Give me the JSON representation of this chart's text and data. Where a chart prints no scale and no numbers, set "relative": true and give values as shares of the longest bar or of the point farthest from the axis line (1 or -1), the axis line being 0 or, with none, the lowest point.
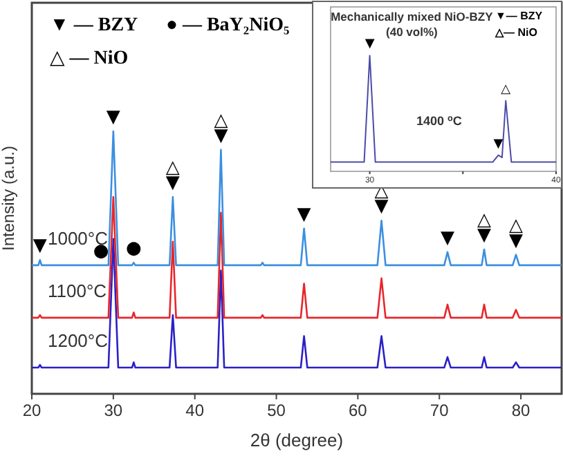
{
  "chart_data": [
    {
      "type": "line",
      "relative": true,
      "xlabel": "2θ (degree)",
      "ylabel": "Intensity (a.u.)",
      "xlim": [
        20,
        85
      ],
      "xticks": [
        20,
        30,
        40,
        50,
        60,
        70,
        80
      ],
      "x": [
        20,
        20.8,
        21,
        21.2,
        29.4,
        30,
        30.6,
        32.3,
        32.5,
        32.7,
        36.9,
        37.3,
        37.7,
        42.8,
        43.2,
        43.6,
        48.1,
        48.3,
        48.5,
        53.0,
        53.4,
        53.8,
        62.4,
        62.9,
        63.4,
        70.6,
        71,
        71.4,
        75.2,
        75.5,
        75.8,
        79.0,
        79.4,
        79.8,
        85
      ],
      "series": [
        {
          "name": "1000°C",
          "color": "#3b8fe0",
          "values": [
            0.49,
            0.49,
            0.51,
            0.49,
            0.49,
            1.0,
            0.49,
            0.49,
            0.5,
            0.49,
            0.49,
            0.75,
            0.49,
            0.49,
            0.93,
            0.49,
            0.49,
            0.5,
            0.49,
            0.49,
            0.63,
            0.49,
            0.49,
            0.66,
            0.49,
            0.49,
            0.54,
            0.49,
            0.49,
            0.55,
            0.49,
            0.49,
            0.53,
            0.49,
            0.49
          ]
        },
        {
          "name": "1100°C",
          "color": "#e8262b",
          "values": [
            0.29,
            0.29,
            0.3,
            0.29,
            0.29,
            0.75,
            0.29,
            0.29,
            0.31,
            0.29,
            0.29,
            0.58,
            0.29,
            0.29,
            0.69,
            0.29,
            0.29,
            0.3,
            0.29,
            0.29,
            0.42,
            0.29,
            0.29,
            0.44,
            0.29,
            0.29,
            0.34,
            0.29,
            0.29,
            0.34,
            0.29,
            0.29,
            0.32,
            0.29,
            0.29
          ]
        },
        {
          "name": "1200°C",
          "color": "#2a20c8",
          "values": [
            0.1,
            0.1,
            0.11,
            0.1,
            0.1,
            0.59,
            0.1,
            0.1,
            0.12,
            0.1,
            0.1,
            0.3,
            0.1,
            0.1,
            0.47,
            0.1,
            0.1,
            0.1,
            0.1,
            0.1,
            0.22,
            0.1,
            0.1,
            0.22,
            0.1,
            0.1,
            0.14,
            0.1,
            0.1,
            0.14,
            0.1,
            0.1,
            0.12,
            0.1,
            0.1
          ]
        }
      ],
      "annotations": [
        "▼ — BZY",
        "● — BaY₂NiO₅",
        "△ — NiO",
        {
          "text": "▼",
          "x": 21,
          "y": 0.51
        },
        {
          "text": "●",
          "x": 28.5,
          "y": 0.49
        },
        {
          "text": "●",
          "x": 32.5,
          "y": 0.5
        },
        {
          "text": "▼",
          "x": 30,
          "y": 1.0
        },
        {
          "text": "▼",
          "x": 37.3,
          "y": 0.75
        },
        {
          "text": "△",
          "x": 37.3,
          "y": 0.75
        },
        {
          "text": "▼",
          "x": 43.2,
          "y": 0.93
        },
        {
          "text": "△",
          "x": 43.2,
          "y": 0.93
        },
        {
          "text": "▼",
          "x": 53.4,
          "y": 0.63
        },
        {
          "text": "▼",
          "x": 62.9,
          "y": 0.66
        },
        {
          "text": "△",
          "x": 62.9,
          "y": 0.66
        },
        {
          "text": "▼",
          "x": 71,
          "y": 0.54
        },
        {
          "text": "▼",
          "x": 75.5,
          "y": 0.55
        },
        {
          "text": "△",
          "x": 75.5,
          "y": 0.55
        },
        {
          "text": "▼",
          "x": 79.4,
          "y": 0.53
        },
        {
          "text": "△",
          "x": 79.4,
          "y": 0.53
        }
      ]
    },
    {
      "type": "line",
      "relative": true,
      "title": "Mechanically mixed NiO-BZY (40 vol%)",
      "xlim": [
        27.9,
        40
      ],
      "xticks": [
        30,
        {
          "value": 35,
          "label": null
        },
        40
      ],
      "x": [
        27.9,
        29.7,
        30,
        30.3,
        36.6,
        36.9,
        37.1,
        37.3,
        37.6,
        40
      ],
      "series": [
        {
          "name": "1400 $^{o}$C",
          "color": "#4b4ba8",
          "values": [
            0.08,
            0.08,
            1.0,
            0.08,
            0.08,
            0.14,
            0.12,
            0.61,
            0.08,
            0.08
          ]
        }
      ],
      "annotations": [
        "▼— BZY",
        "△— NiO",
        {
          "text": "▼",
          "x": 30,
          "y": 1.0
        },
        {
          "text": "▼",
          "x": 36.9,
          "y": 0.14
        },
        {
          "text": "△",
          "x": 37.3,
          "y": 0.61
        }
      ]
    }
  ]
}
